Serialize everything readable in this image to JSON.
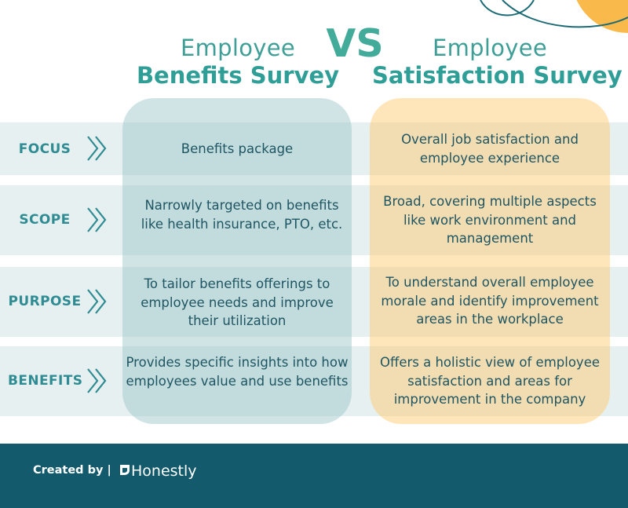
{
  "header": {
    "left_title_top": "Employee",
    "left_title_bottom": "Benefits Survey",
    "vs": "VS",
    "right_title_top": "Employee",
    "right_title_bottom": "Satisfaction Survey"
  },
  "rows": [
    {
      "label": "FOCUS",
      "left": "Benefits package",
      "right": "Overall job satisfaction and employee experience"
    },
    {
      "label": "SCOPE",
      "left": "Narrowly targeted on benefits like health insurance, PTO, etc.",
      "right": "Broad, covering multiple aspects like work environment and management"
    },
    {
      "label": "PURPOSE",
      "left": "To tailor benefits offerings to employee needs and improve their utilization",
      "right": "To understand overall employee morale and identify improvement areas in the workplace"
    },
    {
      "label": "BENEFITS",
      "left": "Provides specific insights into how employees value and use benefits",
      "right": "Offers a holistic view of employee satisfaction and areas for improvement in the company"
    }
  ],
  "footer": {
    "created_by": "Created  by  |",
    "brand": "Honestly"
  },
  "colors": {
    "teal_text": "#2f9e96",
    "row_band": "#e6f0f1",
    "left_column": "#96c4c8",
    "right_column": "#ffc86e",
    "footer_bg": "#125a6c",
    "accent_orange": "#f9b94b"
  }
}
